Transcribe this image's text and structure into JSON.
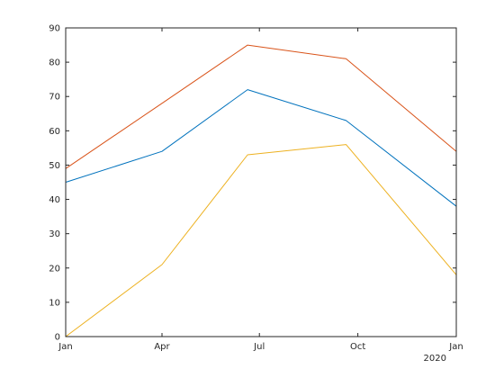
{
  "chart_data": {
    "type": "line",
    "x": [
      "2019-01-01",
      "2019-04-01",
      "2019-06-20",
      "2019-09-20",
      "2020-01-01"
    ],
    "x_tick_labels": [
      "Jan",
      "Apr",
      "Jul",
      "Oct",
      "Jan"
    ],
    "x_tick_dates": [
      "2019-01-01",
      "2019-04-01",
      "2019-07-01",
      "2019-10-01",
      "2020-01-01"
    ],
    "x_secondary_label": "2020",
    "xlim": [
      "2019-01-01",
      "2020-01-01"
    ],
    "ylim": [
      0,
      90
    ],
    "y_ticks": [
      0,
      10,
      20,
      30,
      40,
      50,
      60,
      70,
      80,
      90
    ],
    "title": "",
    "xlabel": "",
    "ylabel": "",
    "grid": false,
    "legend": "none",
    "series": [
      {
        "color": "#0072bd",
        "values": [
          45,
          54,
          72,
          63,
          38
        ]
      },
      {
        "color": "#d95319",
        "values": [
          49,
          68,
          85,
          81,
          54
        ]
      },
      {
        "color": "#edb120",
        "values": [
          0,
          21,
          53,
          56,
          18
        ]
      }
    ]
  }
}
